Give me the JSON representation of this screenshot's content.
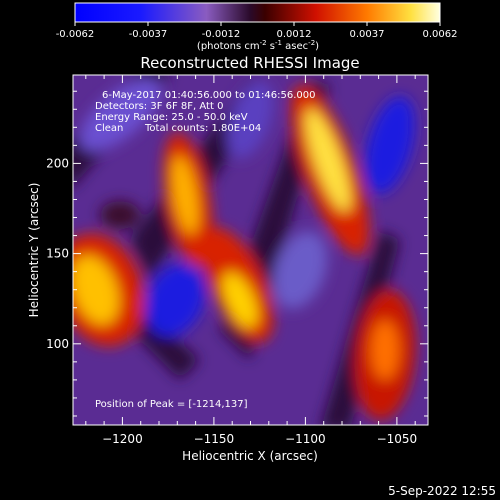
{
  "colorbar": {
    "ticks": [
      "-0.0062",
      "-0.0037",
      "-0.0012",
      "0.0012",
      "0.0037",
      "0.0062"
    ],
    "units_main": "(photons cm",
    "units_exp1": "-2",
    "units_mid": " s",
    "units_exp2": "-1",
    "units_tail": " asec",
    "units_exp3": "-2",
    "units_close": ")"
  },
  "chart_data": {
    "type": "heatmap",
    "title": "Reconstructed RHESSI Image",
    "xlabel": "Heliocentric X (arcsec)",
    "ylabel": "Heliocentric Y (arcsec)",
    "xlim": [
      -1227,
      -1033
    ],
    "ylim": [
      55,
      249
    ],
    "xticks": [
      -1200,
      -1150,
      -1100,
      -1050
    ],
    "yticks": [
      100,
      150,
      200
    ],
    "xtick_labels": [
      "−1200",
      "−1150",
      "−1100",
      "−1050"
    ],
    "ytick_labels": [
      "100",
      "150",
      "200"
    ],
    "zlim": [
      -0.0062,
      0.0062
    ],
    "colormap": "red-temperature with blue negatives",
    "sources": [
      {
        "x": -1214,
        "y": 137,
        "kind": "positive"
      },
      {
        "x": -1178,
        "y": 200,
        "kind": "positive"
      },
      {
        "x": -1162,
        "y": 150,
        "kind": "positive"
      },
      {
        "x": -1136,
        "y": 117,
        "kind": "positive"
      },
      {
        "x": -1092,
        "y": 212,
        "kind": "positive"
      },
      {
        "x": -1056,
        "y": 100,
        "kind": "positive"
      },
      {
        "x": -1046,
        "y": 220,
        "kind": "negative"
      },
      {
        "x": -1176,
        "y": 125,
        "kind": "negative"
      },
      {
        "x": -1114,
        "y": 110,
        "kind": "negative"
      }
    ],
    "annotations": [
      "6-May-2017 01:40:56.000 to 01:46:56.000",
      "Detectors: 3F 6F 8F, Att 0",
      "Energy Range: 25.0 - 50.0 keV",
      "Clean",
      "Total counts: 1.80E+04"
    ],
    "peak_label": "Position of Peak = [-1214,137]"
  },
  "footer": {
    "timestamp": "5-Sep-2022 12:55"
  },
  "colors": {
    "background": "#000000",
    "text": "#ffffff"
  }
}
